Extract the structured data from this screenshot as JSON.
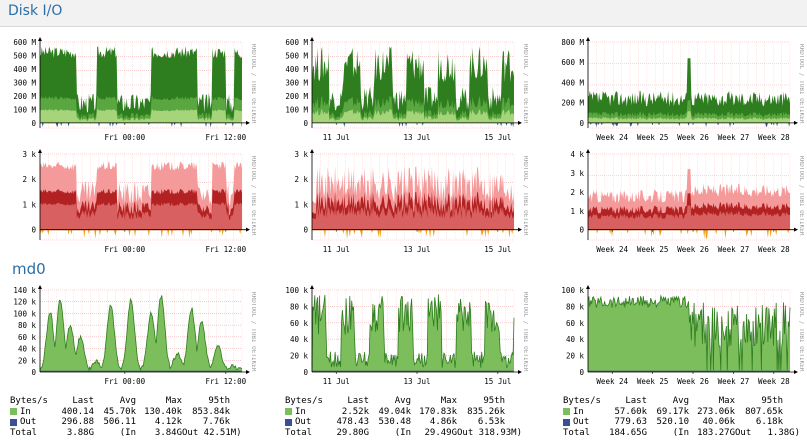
{
  "header": {
    "title": "Disk I/O"
  },
  "section": {
    "title": "md0"
  },
  "watermark": "RRDTOOL / TOBI OETIKER",
  "colors": {
    "grid_red": "#f0b0b0",
    "green_dark": "#2e7d1f",
    "green_mid": "#5aa640",
    "green_light": "#a6d47a",
    "green_fill": "#7cbd5c",
    "blue_out": "#3b4f99",
    "red_light": "#f59a9a",
    "red_dark": "#b32222",
    "orange": "#f29c1a"
  },
  "graphs": [
    {
      "id": "rd",
      "ylabels": [
        "600 M",
        "500 M",
        "400 M",
        "300 M",
        "200 M",
        "100 M",
        "0"
      ],
      "xlabels": [
        "Fri 00:00",
        "Fri 12:00"
      ]
    },
    {
      "id": "rw",
      "ylabels": [
        "600 M",
        "500 M",
        "400 M",
        "300 M",
        "200 M",
        "100 M",
        "0"
      ],
      "xlabels": [
        "11 Jul",
        "13 Jul",
        "15 Jul"
      ]
    },
    {
      "id": "ry",
      "ylabels": [
        "800 M",
        "600 M",
        "400 M",
        "200 M",
        "0"
      ],
      "xlabels": [
        "Week 24",
        "Week 25",
        "Week 26",
        "Week 27",
        "Week 28"
      ]
    },
    {
      "id": "od",
      "ylabels": [
        "3 k",
        "2 k",
        "1 k",
        "0"
      ],
      "xlabels": [
        "Fri 00:00",
        "Fri 12:00"
      ]
    },
    {
      "id": "ow",
      "ylabels": [
        "3 k",
        "2 k",
        "1 k",
        "0"
      ],
      "xlabels": [
        "11 Jul",
        "13 Jul",
        "15 Jul"
      ]
    },
    {
      "id": "oy",
      "ylabels": [
        "4 k",
        "3 k",
        "2 k",
        "1 k",
        "0"
      ],
      "xlabels": [
        "Week 24",
        "Week 25",
        "Week 26",
        "Week 27",
        "Week 28"
      ]
    },
    {
      "id": "md",
      "ylabels": [
        "140 k",
        "120 k",
        "100 k",
        "80 k",
        "60 k",
        "40 k",
        "20 k",
        "0"
      ],
      "xlabels": [
        "Fri 00:00",
        "Fri 12:00"
      ]
    },
    {
      "id": "mw",
      "ylabels": [
        "100 k",
        "80 k",
        "60 k",
        "40 k",
        "20 k",
        "0"
      ],
      "xlabels": [
        "11 Jul",
        "13 Jul",
        "15 Jul"
      ]
    },
    {
      "id": "my",
      "ylabels": [
        "100 k",
        "80 k",
        "60 k",
        "40 k",
        "20 k",
        "0"
      ],
      "xlabels": [
        "Week 24",
        "Week 25",
        "Week 26",
        "Week 27",
        "Week 28"
      ]
    }
  ],
  "legends": [
    {
      "header": [
        "Bytes/s",
        "Last",
        "Avg",
        "Max",
        "95th"
      ],
      "in": [
        "In",
        "400.14",
        "45.70k",
        "130.40k",
        "853.84k"
      ],
      "out": [
        "Out",
        "296.88",
        "506.11",
        "4.12k",
        "7.76k"
      ],
      "total": [
        "Total",
        "3.88G",
        "(In",
        "3.84G",
        "Out 42.51M)"
      ]
    },
    {
      "header": [
        "Bytes/s",
        "Last",
        "Avg",
        "Max",
        "95th"
      ],
      "in": [
        "In",
        "2.52k",
        "49.04k",
        "170.83k",
        "835.26k"
      ],
      "out": [
        "Out",
        "478.43",
        "530.48",
        "4.86k",
        "6.53k"
      ],
      "total": [
        "Total",
        "29.80G",
        "(In",
        "29.49G",
        "Out 318.93M)"
      ]
    },
    {
      "header": [
        "Bytes/s",
        "Last",
        "Avg",
        "Max",
        "95th"
      ],
      "in": [
        "In",
        "57.60k",
        "69.17k",
        "273.06k",
        "807.65k"
      ],
      "out": [
        "Out",
        "779.63",
        "520.10",
        "40.06k",
        "6.18k"
      ],
      "total": [
        "Total",
        "184.65G",
        "(In",
        "183.27G",
        "Out   1.38G)"
      ]
    }
  ]
}
